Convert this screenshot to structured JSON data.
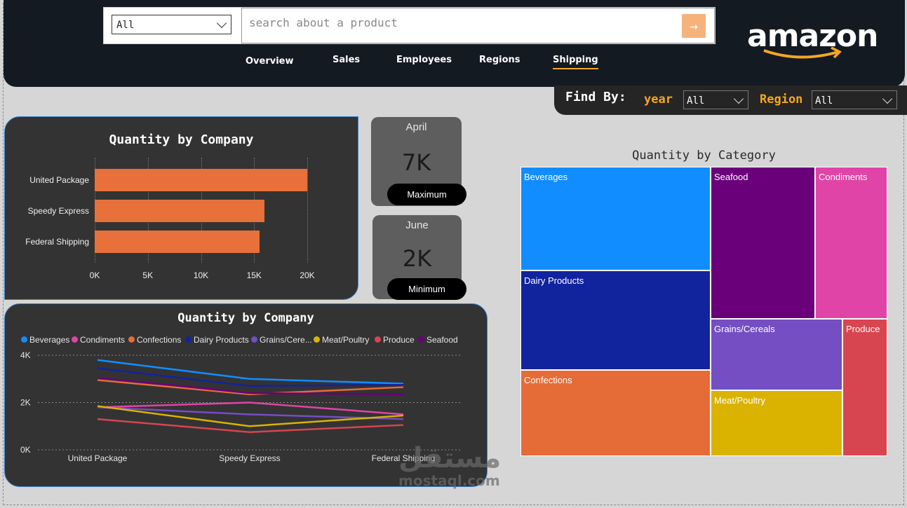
{
  "search": {
    "category_value": "All",
    "placeholder": "search about a product",
    "button_icon": "arrow-right-icon"
  },
  "nav": {
    "items": [
      "Overview",
      "Sales",
      "Employees",
      "Regions",
      "Shipping"
    ],
    "active": "Shipping"
  },
  "logo": {
    "text": "amazon"
  },
  "filters": {
    "label": "Find By:",
    "year_label": "year",
    "year_value": "All",
    "region_label": "Region",
    "region_value": "All"
  },
  "colors": {
    "accent": "#f5a623",
    "bar": "#e8703a",
    "header_bg": "#131a22",
    "card_bg": "#333333"
  },
  "kpis": [
    {
      "month": "April",
      "value": "7K",
      "label": "Maximum"
    },
    {
      "month": "June",
      "value": "2K",
      "label": "Minimum"
    }
  ],
  "watermark": {
    "arabic": "مستقل",
    "latin": "mostaql.com"
  },
  "chart_data": [
    {
      "type": "bar",
      "orientation": "horizontal",
      "title": "Quantity by Company",
      "categories": [
        "United Package",
        "Speedy Express",
        "Federal Shipping"
      ],
      "values": [
        20000,
        16000,
        15500
      ],
      "xlim": [
        0,
        20000
      ],
      "xticks": [
        "0K",
        "5K",
        "10K",
        "15K",
        "20K"
      ],
      "xlabel": "",
      "ylabel": "",
      "color": "#e8703a"
    },
    {
      "type": "line",
      "title": "Quantity by Company",
      "categories": [
        "United Package",
        "Speedy Express",
        "Federal Shipping"
      ],
      "ylim": [
        0,
        4000
      ],
      "yticks": [
        "0K",
        "2K",
        "4K"
      ],
      "legend_position": "top",
      "series": [
        {
          "name": "Beverages",
          "color": "#118dff",
          "values": [
            3800,
            3000,
            2800
          ]
        },
        {
          "name": "Condiments",
          "color": "#e044a7",
          "values": [
            1800,
            2000,
            1500
          ]
        },
        {
          "name": "Confections",
          "color": "#e66c37",
          "values": [
            2950,
            2350,
            2650
          ]
        },
        {
          "name": "Dairy Products",
          "color": "#12239e",
          "values": [
            3450,
            2700,
            2750
          ]
        },
        {
          "name": "Grains/Cere...",
          "color": "#744ec2",
          "values": [
            1800,
            1500,
            1300
          ]
        },
        {
          "name": "Meat/Poultry",
          "color": "#d9b300",
          "values": [
            1850,
            1000,
            1450
          ]
        },
        {
          "name": "Produce",
          "color": "#d64550",
          "values": [
            1300,
            750,
            1050
          ]
        },
        {
          "name": "Seafood",
          "color": "#6b007b",
          "values": [
            3050,
            2400,
            2350
          ]
        }
      ]
    },
    {
      "type": "treemap",
      "title": "Quantity by Category",
      "items": [
        {
          "name": "Beverages",
          "color": "#118dff"
        },
        {
          "name": "Dairy Products",
          "color": "#12239e"
        },
        {
          "name": "Confections",
          "color": "#e66c37"
        },
        {
          "name": "Seafood",
          "color": "#6b007b"
        },
        {
          "name": "Condiments",
          "color": "#e044a7"
        },
        {
          "name": "Grains/Cereals",
          "color": "#744ec2"
        },
        {
          "name": "Meat/Poultry",
          "color": "#d9b300"
        },
        {
          "name": "Produce",
          "color": "#d64550"
        }
      ]
    }
  ]
}
